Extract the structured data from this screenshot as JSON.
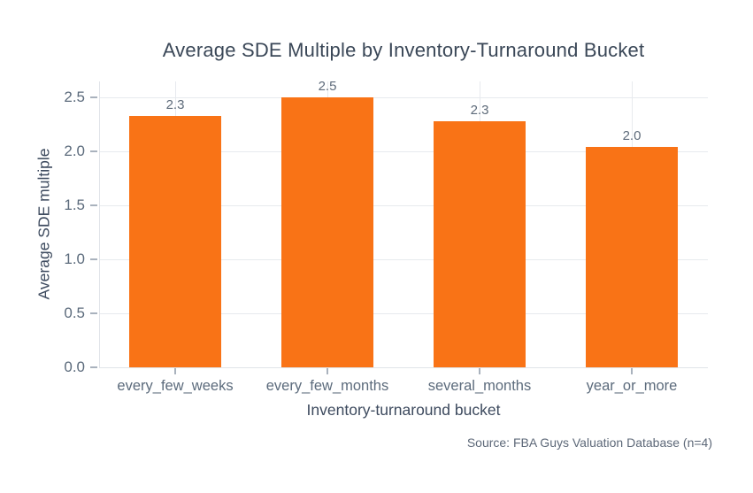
{
  "chart_data": {
    "type": "bar",
    "title": "Average SDE Multiple by Inventory-Turnaround Bucket",
    "xlabel": "Inventory-turnaround bucket",
    "ylabel": "Average SDE multiple",
    "categories": [
      "every_few_weeks",
      "every_few_months",
      "several_months",
      "year_or_more"
    ],
    "values": [
      2.33,
      2.5,
      2.28,
      2.04
    ],
    "bar_labels": [
      "2.3",
      "2.5",
      "2.3",
      "2.0"
    ],
    "ytick_values": [
      0.0,
      0.5,
      1.0,
      1.5,
      2.0,
      2.5
    ],
    "ytick_labels": [
      "0.0",
      "0.5",
      "1.0",
      "1.5",
      "2.0",
      "2.5"
    ],
    "ylim": [
      0,
      2.65
    ],
    "grid": "both",
    "legend_position": "none",
    "bar_color": "#f97316",
    "background_color": "#ffffff",
    "source_note": "Source: FBA Guys Valuation Database (n=4)"
  }
}
